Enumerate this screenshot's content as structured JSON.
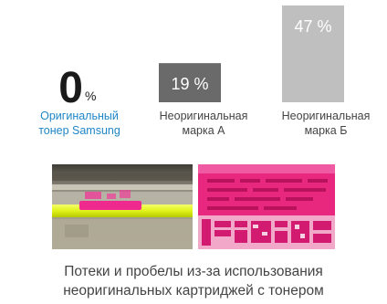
{
  "chart_data": {
    "type": "bar",
    "categories": [
      "Оригинальный\nтонер Samsung",
      "Неоригинальная\nмарка А",
      "Неоригинальная\nмарка Б"
    ],
    "values": [
      0,
      19,
      47
    ],
    "value_labels": [
      "0",
      "19 %",
      "47 %"
    ],
    "value_unit_small": "%",
    "ylim": [
      0,
      47
    ],
    "colors": [
      "#1a1a1a",
      "#6a6a6b",
      "#bfbfc0"
    ],
    "label_colors": [
      "#1f86c6",
      "#444444",
      "#444444"
    ]
  },
  "caption": "Потеки и пробелы из-за использования\nнеоригинальных картриджей с тонером",
  "photos": [
    {
      "name": "photo-toner-roller"
    },
    {
      "name": "photo-print-defects"
    }
  ]
}
